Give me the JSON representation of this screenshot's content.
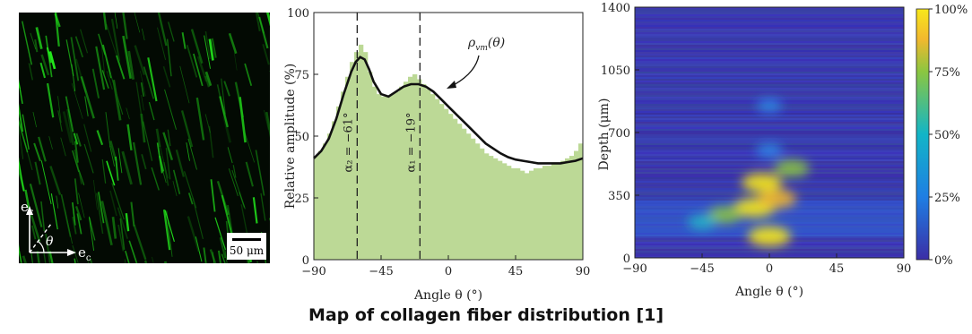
{
  "caption": "Map of collagen fiber distribution [1]",
  "colors": {
    "fiber_green": "#2bd42b",
    "bar_fill": "#bcd996",
    "curve": "#111111",
    "heat_low": "#3b2ea6",
    "heat_high": "#f7e81b"
  },
  "micrograph": {
    "axis_labels": {
      "e_r": "e",
      "e_r_sub": "r",
      "e_c": "e",
      "e_c_sub": "c",
      "theta": "θ"
    },
    "scale_bar_label": "50 μm"
  },
  "chart_data": [
    {
      "type": "bar",
      "xlabel": "Angle θ (°)",
      "ylabel": "Relative amplitude (%)",
      "xlim": [
        -90,
        90
      ],
      "ylim": [
        0,
        100
      ],
      "xticks": [
        -90,
        -45,
        0,
        45,
        90
      ],
      "yticks": [
        0,
        25,
        50,
        75,
        100
      ],
      "x": [
        -90,
        -87,
        -84,
        -81,
        -78,
        -75,
        -72,
        -69,
        -66,
        -63,
        -60,
        -57,
        -54,
        -51,
        -48,
        -45,
        -42,
        -39,
        -36,
        -33,
        -30,
        -27,
        -24,
        -21,
        -18,
        -15,
        -12,
        -9,
        -6,
        -3,
        0,
        3,
        6,
        9,
        12,
        15,
        18,
        21,
        24,
        27,
        30,
        33,
        36,
        39,
        42,
        45,
        48,
        51,
        54,
        57,
        60,
        63,
        66,
        69,
        72,
        75,
        78,
        81,
        84,
        87
      ],
      "values": [
        42,
        44,
        47,
        51,
        56,
        62,
        68,
        74,
        80,
        84,
        87,
        84,
        76,
        70,
        67,
        66,
        66,
        67,
        68,
        70,
        72,
        74,
        75,
        73,
        71,
        69,
        67,
        65,
        63,
        61,
        59,
        57,
        55,
        53,
        51,
        49,
        47,
        45,
        43,
        42,
        41,
        40,
        39,
        38,
        37,
        37,
        36,
        35,
        36,
        37,
        37,
        38,
        38,
        39,
        39,
        40,
        41,
        42,
        44,
        47
      ],
      "curve_label": "ρ_vm(θ)",
      "curve_label_main": "ρ",
      "curve_label_sub": "vm",
      "curve_label_rest": "(θ)",
      "curve": {
        "x": [
          -90,
          -85,
          -80,
          -75,
          -70,
          -65,
          -62,
          -59,
          -56,
          -53,
          -50,
          -45,
          -40,
          -35,
          -30,
          -25,
          -20,
          -15,
          -10,
          -5,
          0,
          5,
          10,
          15,
          20,
          25,
          30,
          35,
          40,
          45,
          50,
          55,
          60,
          65,
          70,
          75,
          80,
          85,
          90
        ],
        "y": [
          41,
          44,
          49,
          57,
          67,
          76,
          80,
          82,
          81,
          77,
          72,
          67,
          66,
          68,
          70,
          71,
          71,
          70,
          68,
          65,
          62,
          59,
          56,
          53,
          50,
          47,
          45,
          43,
          41.5,
          40.5,
          40,
          39.5,
          39,
          39,
          39,
          39,
          39.5,
          40,
          41
        ]
      },
      "vlines": [
        {
          "x": -61,
          "label": "α₂ = −61°"
        },
        {
          "x": -19,
          "label": "α₁ = −19°"
        }
      ]
    },
    {
      "type": "heatmap",
      "xlabel": "Angle θ (°)",
      "ylabel": "Depth (μm)",
      "xlim": [
        -90,
        90
      ],
      "ylim": [
        0,
        1400
      ],
      "xticks": [
        -90,
        -45,
        0,
        45,
        90
      ],
      "yticks": [
        0,
        350,
        700,
        1050,
        1400
      ],
      "colorbar": {
        "min": 0,
        "max": 100,
        "ticks": [
          "0%",
          "25%",
          "50%",
          "75%",
          "100%"
        ]
      },
      "hotspots": [
        {
          "angle": 0,
          "depth": 120,
          "level": 100
        },
        {
          "angle": -10,
          "depth": 280,
          "level": 95
        },
        {
          "angle": 5,
          "depth": 330,
          "level": 85
        },
        {
          "angle": -5,
          "depth": 420,
          "level": 90
        },
        {
          "angle": 15,
          "depth": 500,
          "level": 70
        },
        {
          "angle": -30,
          "depth": 240,
          "level": 65
        },
        {
          "angle": -45,
          "depth": 200,
          "level": 45
        },
        {
          "angle": 0,
          "depth": 600,
          "level": 35
        },
        {
          "angle": 0,
          "depth": 850,
          "level": 30
        }
      ]
    }
  ]
}
